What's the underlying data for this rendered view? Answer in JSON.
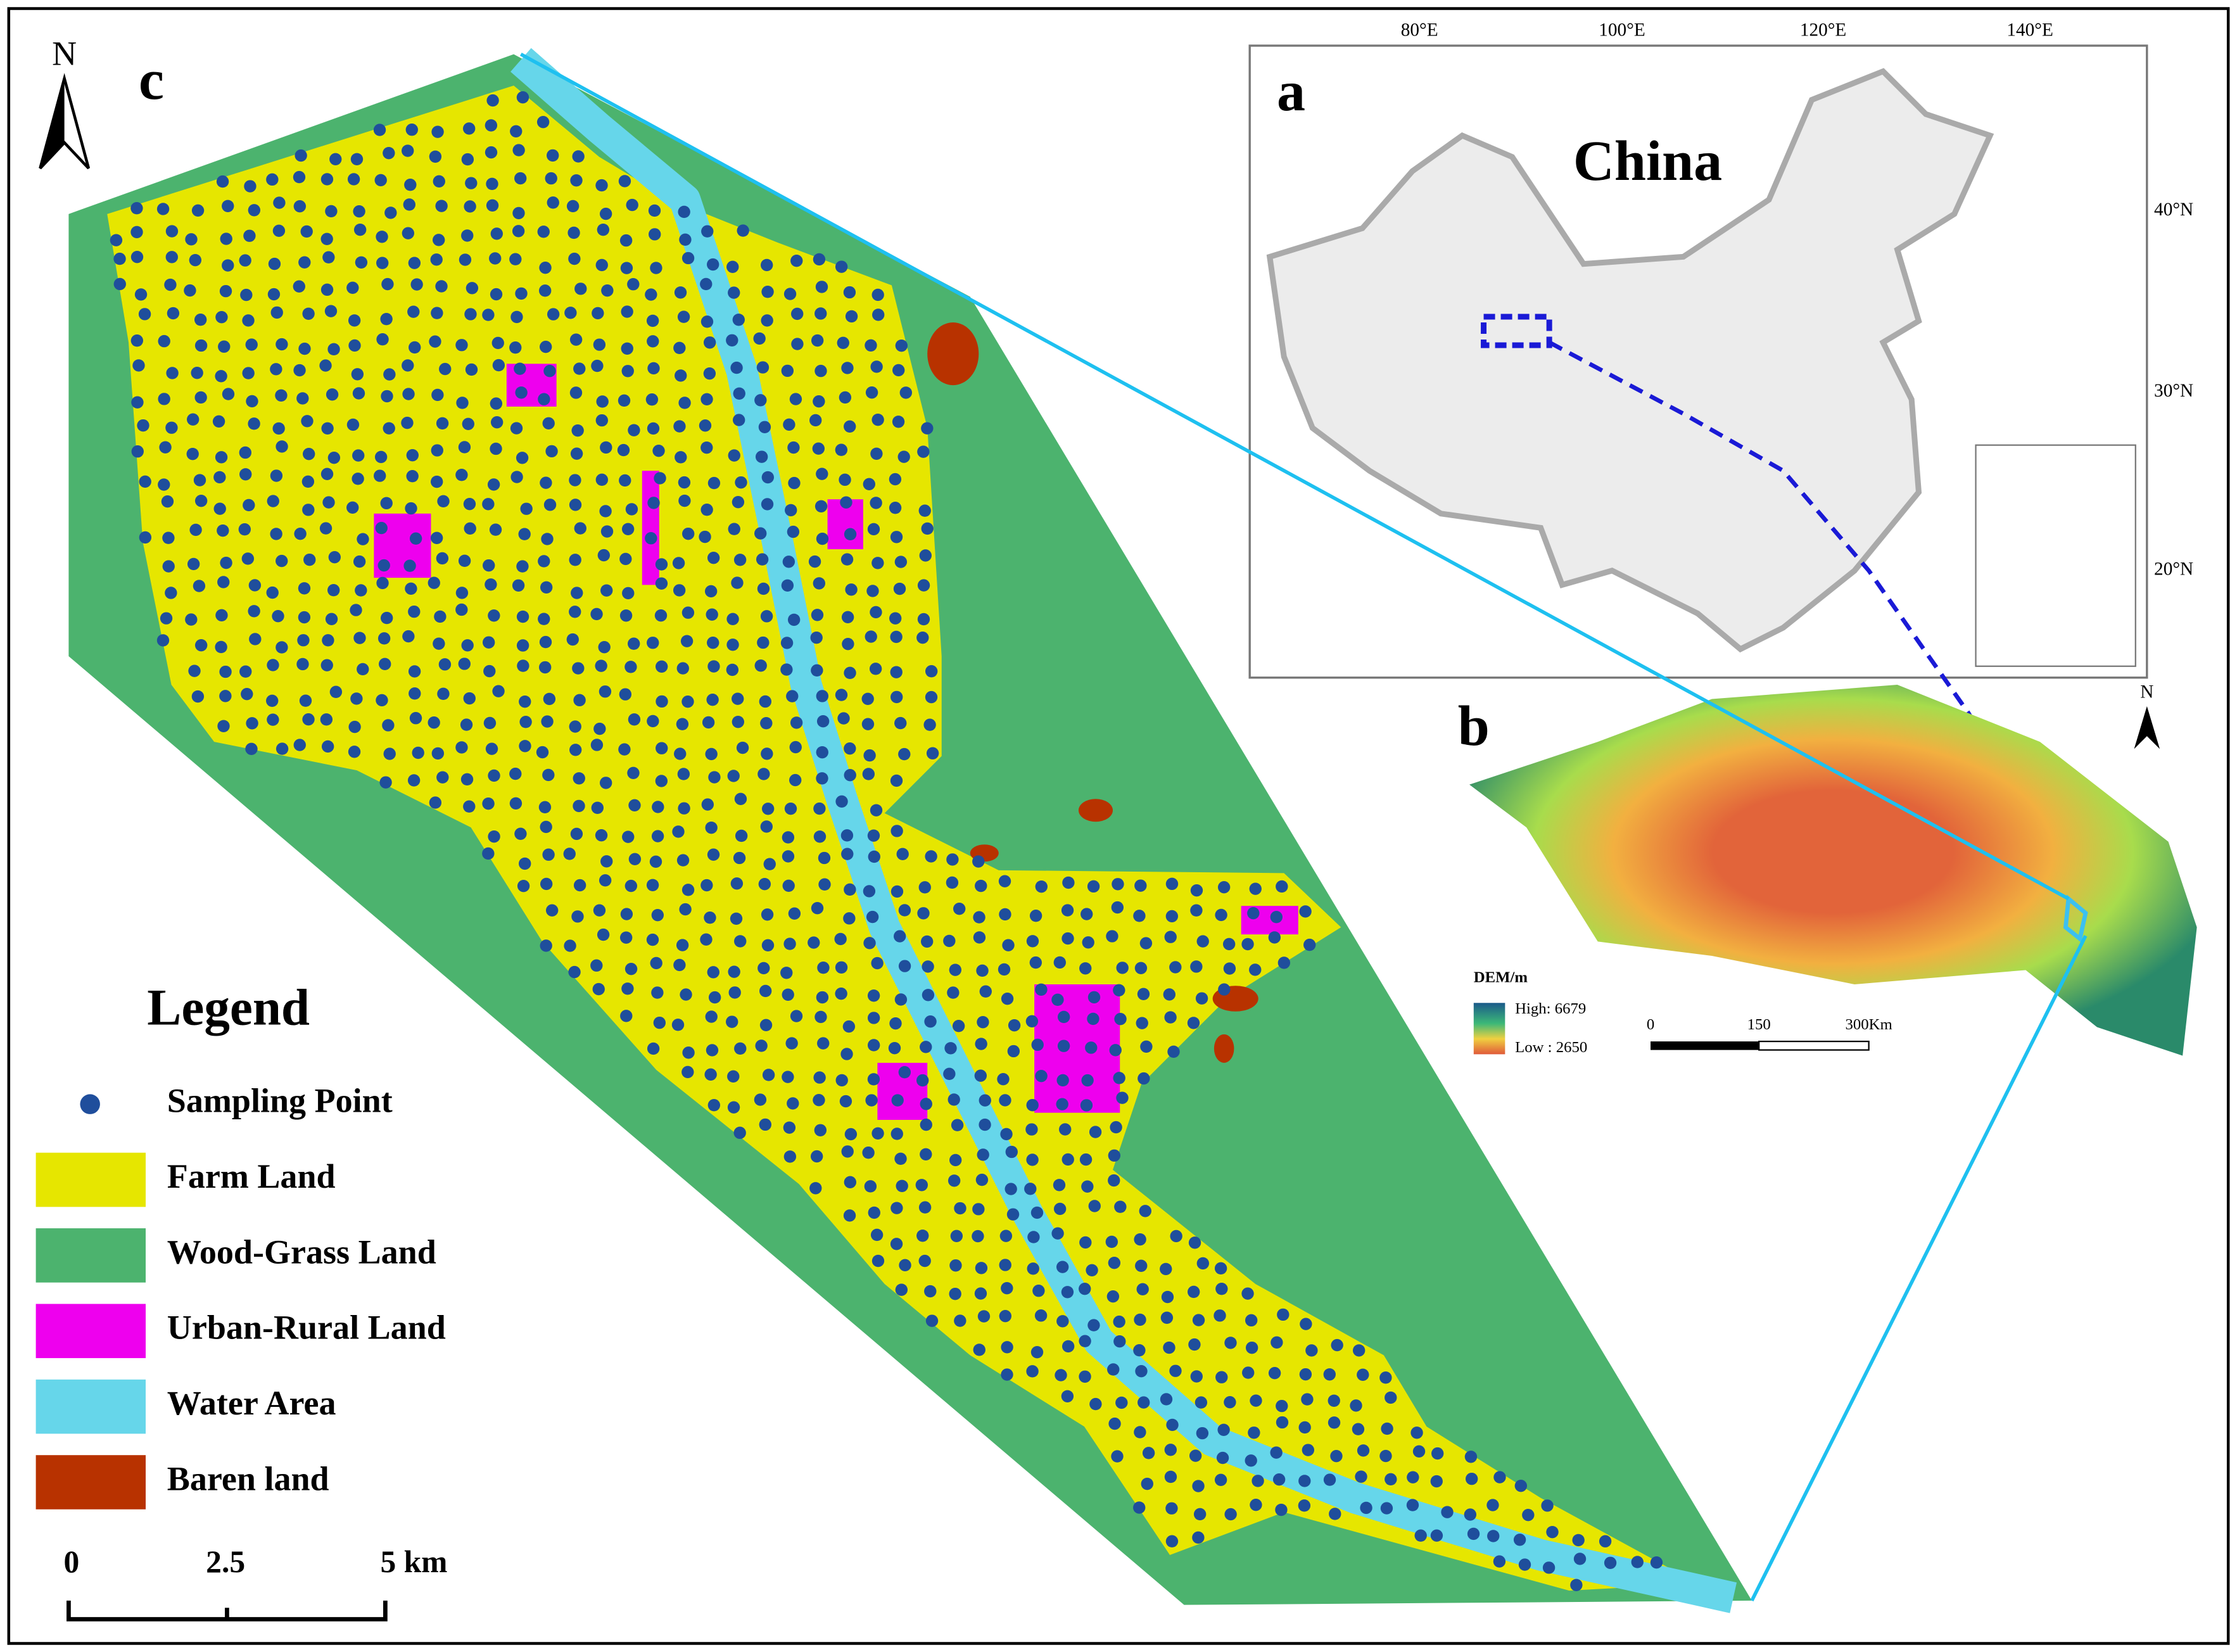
{
  "panel_labels": [
    "a",
    "b",
    "c"
  ],
  "map_a": {
    "title": "China",
    "lon_labels": [
      "80°E",
      "100°E",
      "120°E",
      "140°E"
    ],
    "lat_labels": [
      "40°N",
      "30°N",
      "20°N"
    ]
  },
  "map_b": {
    "north": "N",
    "dem_title": "DEM/m",
    "dem_high": "High: 6679",
    "dem_low": "Low  : 2650",
    "scale_labels": [
      "0",
      "150",
      "300Km"
    ]
  },
  "map_c": {
    "north": "N",
    "scale_labels": [
      "0",
      "2.5",
      "5 km"
    ]
  },
  "legend": {
    "title": "Legend",
    "items": [
      {
        "label": "Sampling Point",
        "color": "#1f4e9c"
      },
      {
        "label": "Farm Land",
        "color": "#e6e600"
      },
      {
        "label": "Wood-Grass Land",
        "color": "#4cb36e"
      },
      {
        "label": "Urban-Rural Land",
        "color": "#ee00ee"
      },
      {
        "label": "Water Area",
        "color": "#66d6ea"
      },
      {
        "label": "Baren land",
        "color": "#b83200"
      }
    ]
  }
}
